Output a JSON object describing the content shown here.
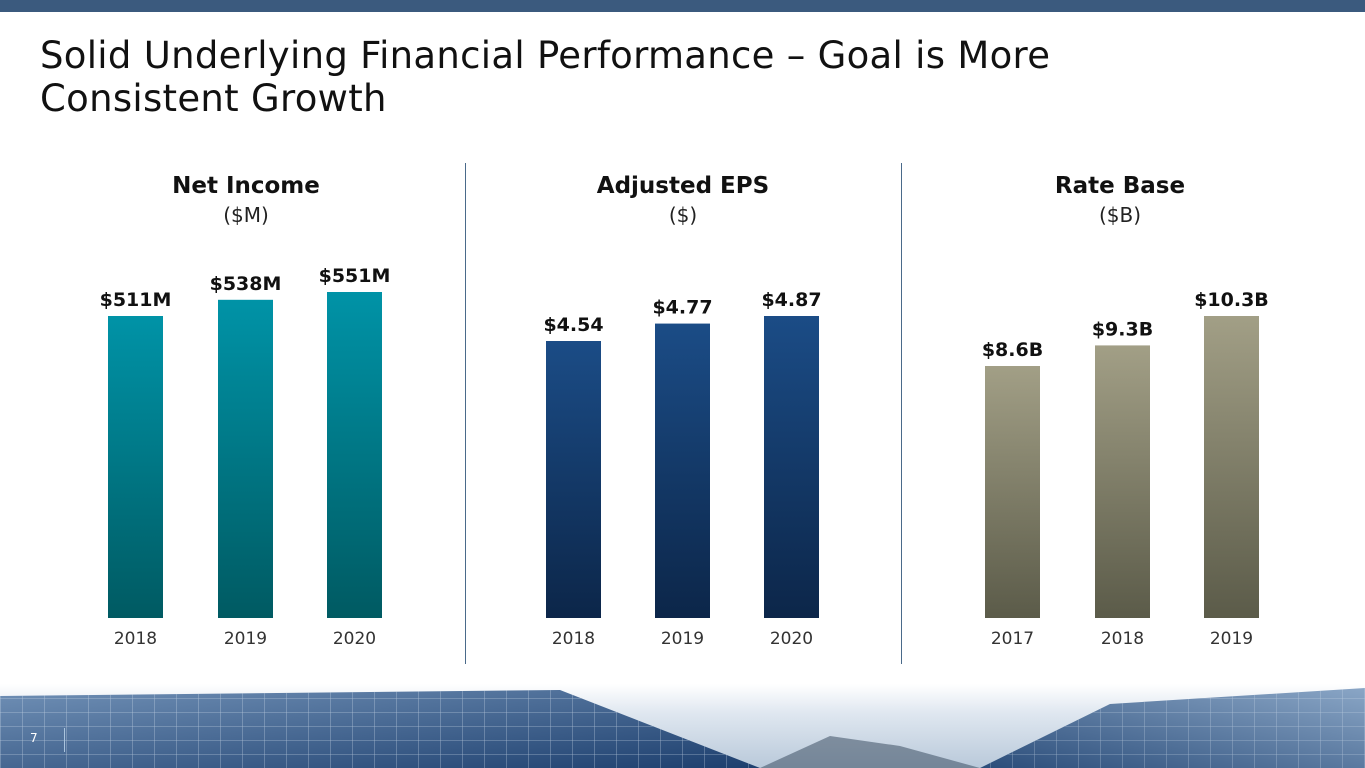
{
  "title": "Solid Underlying Financial Performance – Goal is More Consistent Growth",
  "page_number": "7",
  "colors": {
    "topbar": "#3b5a7e",
    "net_income_top": "#0093a7",
    "net_income_bottom": "#005a62",
    "eps_top": "#1b4c86",
    "eps_bottom": "#0c2649",
    "rate_top": "#a29f86",
    "rate_bottom": "#5b5b49"
  },
  "chart_data": [
    {
      "type": "bar",
      "title": "Net Income",
      "unit": "($M)",
      "categories": [
        "2018",
        "2019",
        "2020"
      ],
      "values": [
        511,
        538,
        551
      ],
      "labels": [
        "$511M",
        "$538M",
        "$551M"
      ],
      "color_key": "net_income"
    },
    {
      "type": "bar",
      "title": "Adjusted EPS",
      "unit": "($)",
      "categories": [
        "2018",
        "2019",
        "2020"
      ],
      "values": [
        4.54,
        4.77,
        4.87
      ],
      "labels": [
        "$4.54",
        "$4.77",
        "$4.87"
      ],
      "color_key": "eps"
    },
    {
      "type": "bar",
      "title": "Rate Base",
      "unit": "($B)",
      "categories": [
        "2017",
        "2018",
        "2019"
      ],
      "values": [
        8.6,
        9.3,
        10.3
      ],
      "labels": [
        "$8.6B",
        "$9.3B",
        "$10.3B"
      ],
      "color_key": "rate"
    }
  ]
}
